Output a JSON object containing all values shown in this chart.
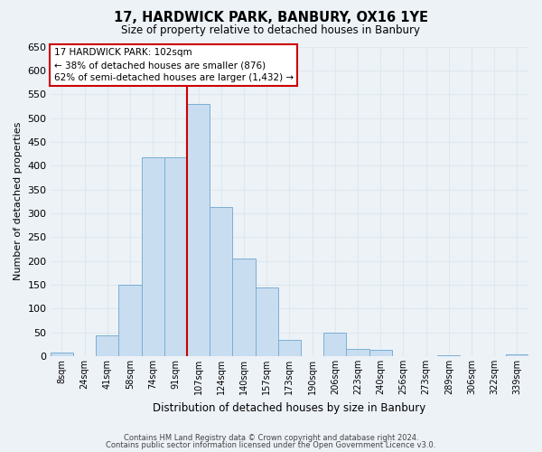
{
  "title": "17, HARDWICK PARK, BANBURY, OX16 1YE",
  "subtitle": "Size of property relative to detached houses in Banbury",
  "xlabel": "Distribution of detached houses by size in Banbury",
  "ylabel": "Number of detached properties",
  "bar_color": "#c9ddf0",
  "bar_edge_color": "#7aafd4",
  "bins": [
    "8sqm",
    "24sqm",
    "41sqm",
    "58sqm",
    "74sqm",
    "91sqm",
    "107sqm",
    "124sqm",
    "140sqm",
    "157sqm",
    "173sqm",
    "190sqm",
    "206sqm",
    "223sqm",
    "240sqm",
    "256sqm",
    "273sqm",
    "289sqm",
    "306sqm",
    "322sqm",
    "339sqm"
  ],
  "values": [
    8,
    0,
    44,
    150,
    417,
    417,
    530,
    314,
    205,
    145,
    35,
    0,
    49,
    15,
    14,
    0,
    0,
    2,
    0,
    0,
    3
  ],
  "vline_x_index": 6,
  "vline_color": "#cc0000",
  "annotation_line1": "17 HARDWICK PARK: 102sqm",
  "annotation_line2": "← 38% of detached houses are smaller (876)",
  "annotation_line3": "62% of semi-detached houses are larger (1,432) →",
  "ylim": [
    0,
    650
  ],
  "yticks": [
    0,
    50,
    100,
    150,
    200,
    250,
    300,
    350,
    400,
    450,
    500,
    550,
    600,
    650
  ],
  "footer1": "Contains HM Land Registry data © Crown copyright and database right 2024.",
  "footer2": "Contains public sector information licensed under the Open Government Licence v3.0.",
  "grid_color": "#dde8f0",
  "background_color": "#edf2f7"
}
